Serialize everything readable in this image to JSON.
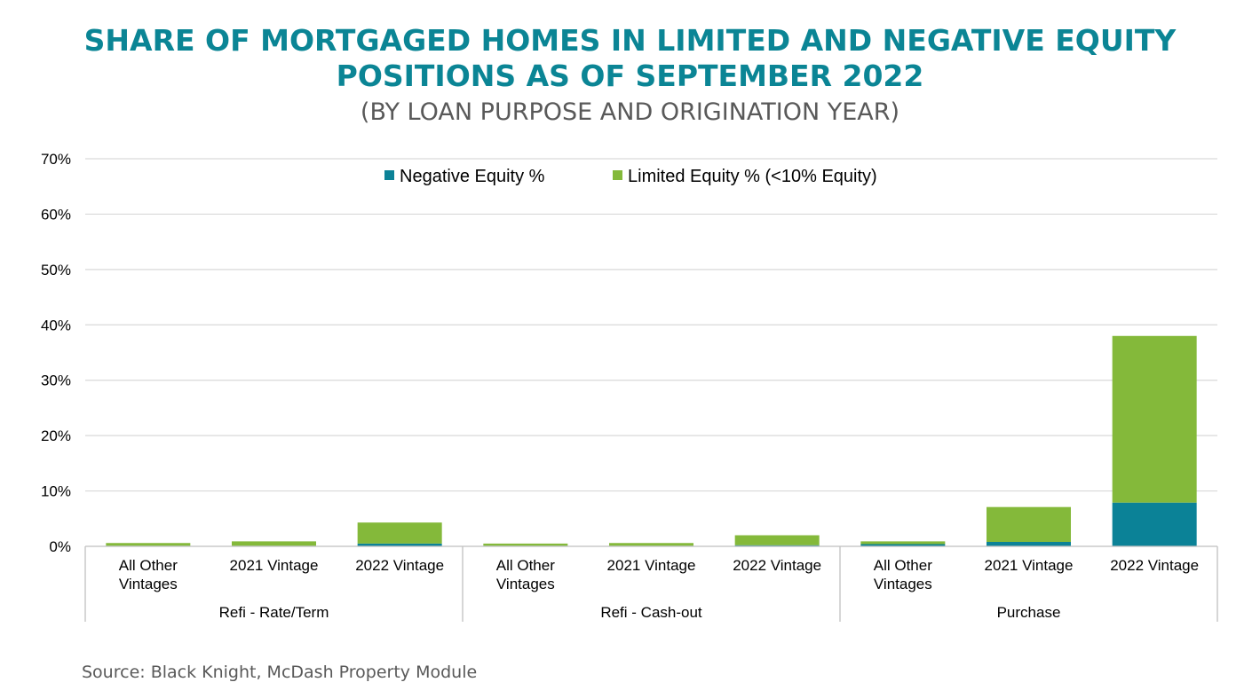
{
  "title_line1": "SHARE OF MORTGAGED HOMES IN LIMITED AND NEGATIVE EQUITY",
  "title_line2": "POSITIONS AS OF SEPTEMBER 2022",
  "subtitle": "(BY LOAN PURPOSE AND ORIGINATION YEAR)",
  "source": "Source: Black Knight, McDash Property Module",
  "chart_data": {
    "type": "bar",
    "stacked": true,
    "groups": [
      {
        "label": "Refi - Rate/Term",
        "categories": [
          [
            "All Other",
            "Vintages"
          ],
          [
            "2021 Vintage"
          ],
          [
            "2022 Vintage"
          ]
        ]
      },
      {
        "label": "Refi - Cash-out",
        "categories": [
          [
            "All Other",
            "Vintages"
          ],
          [
            "2021 Vintage"
          ],
          [
            "2022 Vintage"
          ]
        ]
      },
      {
        "label": "Purchase",
        "categories": [
          [
            "All Other",
            "Vintages"
          ],
          [
            "2021 Vintage"
          ],
          [
            "2022 Vintage"
          ]
        ]
      }
    ],
    "series": [
      {
        "name": "Negative Equity %",
        "color": "#0b8297",
        "values": [
          0.1,
          0.1,
          0.5,
          0.1,
          0.1,
          0.2,
          0.4,
          0.8,
          7.9
        ]
      },
      {
        "name": "Limited Equity % (<10% Equity)",
        "color": "#84b93a",
        "values": [
          0.5,
          0.8,
          3.8,
          0.4,
          0.5,
          1.8,
          0.5,
          6.3,
          30.1
        ]
      }
    ],
    "ylim": [
      0,
      70
    ],
    "yticks": [
      0,
      10,
      20,
      30,
      40,
      50,
      60,
      70
    ],
    "ytick_labels": [
      "0%",
      "10%",
      "20%",
      "30%",
      "40%",
      "50%",
      "60%",
      "70%"
    ],
    "grid": true,
    "legend_position": "top-center",
    "xlabel": "",
    "ylabel": ""
  }
}
